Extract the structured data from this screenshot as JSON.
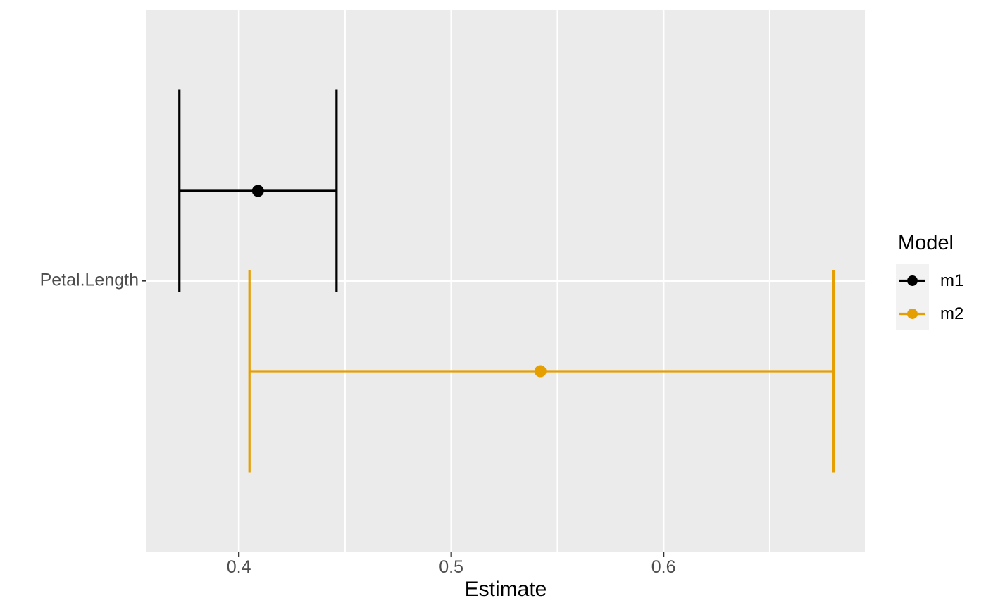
{
  "chart_data": {
    "type": "errorbar",
    "title": "",
    "xlabel": "Estimate",
    "ylabel": "",
    "categories": [
      "Petal.Length"
    ],
    "x_axis": {
      "range": [
        0.3565,
        0.6948
      ],
      "ticks": [
        {
          "value": 0.4,
          "label": "0.4"
        },
        {
          "value": 0.5,
          "label": "0.5"
        },
        {
          "value": 0.6,
          "label": "0.6"
        }
      ],
      "minor_ticks": [
        0.45,
        0.55,
        0.65
      ]
    },
    "series": [
      {
        "name": "m1",
        "color": "#000000",
        "term": "Petal.Length",
        "estimate": 0.409,
        "conf_low": 0.372,
        "conf_high": 0.446
      },
      {
        "name": "m2",
        "color": "#E69F00",
        "term": "Petal.Length",
        "estimate": 0.542,
        "conf_low": 0.405,
        "conf_high": 0.68
      }
    ],
    "legend": {
      "title": "Model",
      "position": "right",
      "entries": [
        {
          "label": "m1",
          "color": "#000000"
        },
        {
          "label": "m2",
          "color": "#E69F00"
        }
      ]
    },
    "style": {
      "panel_background": "#EBEBEB",
      "grid_color": "#FFFFFF",
      "axis_text_color": "#4D4D4D",
      "axis_title_color": "#000000",
      "tick_mark_color": "#333333",
      "legend_key_background": "#F2F2F2"
    }
  }
}
